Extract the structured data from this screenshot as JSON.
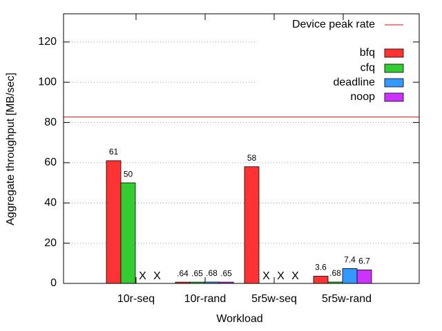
{
  "chart_data": {
    "type": "bar",
    "xlabel": "Workload",
    "ylabel": "Aggregate throughput [MB/sec]",
    "categories": [
      "10r-seq",
      "10r-rand",
      "5r5w-seq",
      "5r5w-rand"
    ],
    "series": [
      {
        "name": "bfq",
        "color": "#ff3333",
        "values": [
          61,
          0.64,
          58,
          3.6
        ],
        "value_labels": [
          "61",
          ".64",
          "58",
          "3.6"
        ]
      },
      {
        "name": "cfq",
        "color": "#33cc33",
        "values": [
          50,
          0.65,
          null,
          0.68
        ],
        "value_labels": [
          "50",
          ".65",
          "X",
          ".68"
        ]
      },
      {
        "name": "deadline",
        "color": "#3399ff",
        "values": [
          null,
          0.68,
          null,
          7.4
        ],
        "value_labels": [
          "X",
          ".68",
          "X",
          "7.4"
        ]
      },
      {
        "name": "noop",
        "color": "#cc33ff",
        "values": [
          null,
          0.65,
          null,
          6.7
        ],
        "value_labels": [
          "X",
          ".65",
          "X",
          "6.7"
        ]
      }
    ],
    "reference_line": {
      "name": "Device peak rate",
      "value": 82.7,
      "color": "#ff0000"
    },
    "ylim": [
      0,
      134
    ],
    "yticks": [
      0,
      20,
      40,
      60,
      80,
      100,
      120
    ],
    "grid": true,
    "legend": "top-right"
  }
}
